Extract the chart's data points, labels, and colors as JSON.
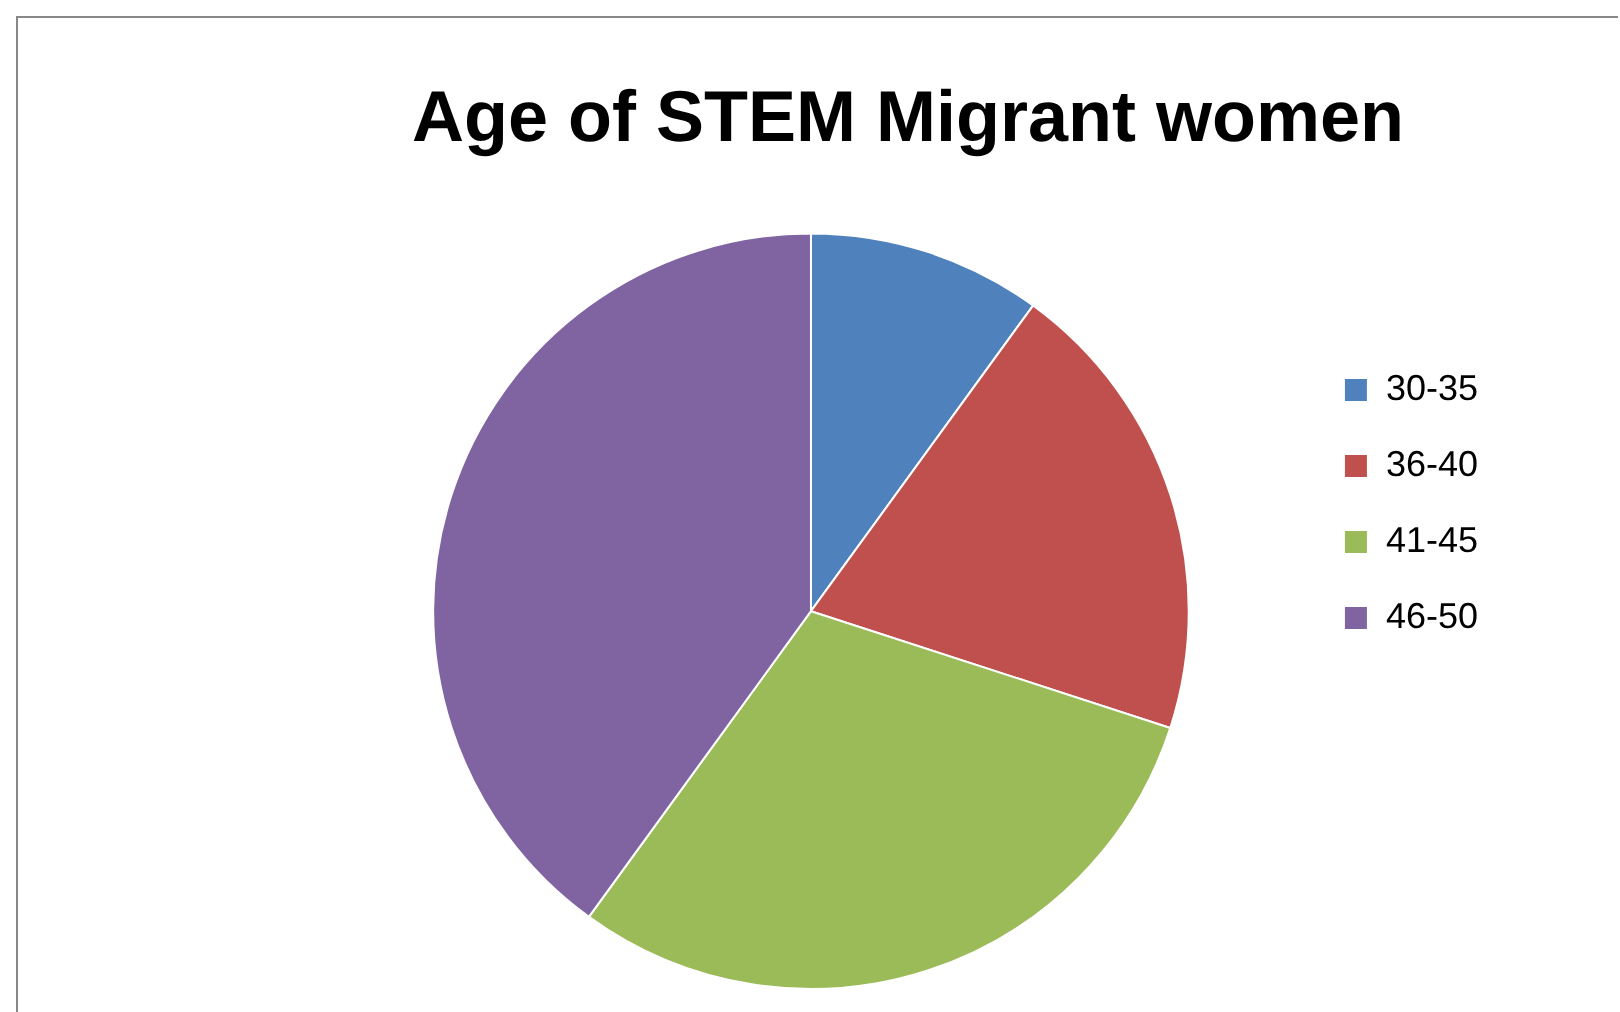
{
  "chart_data": {
    "type": "pie",
    "title": "Age of STEM Migrant women",
    "categories": [
      "30-35",
      "36-40",
      "41-45",
      "46-50"
    ],
    "values": [
      10,
      20,
      30,
      40
    ],
    "colors": [
      "#4f81bd",
      "#c0504d",
      "#9bbb59",
      "#8064a2"
    ],
    "legend": "right"
  }
}
